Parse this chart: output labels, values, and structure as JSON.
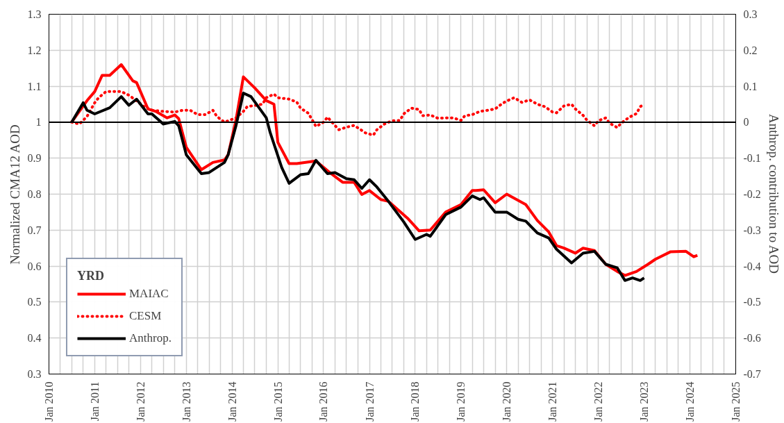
{
  "chart_data": {
    "type": "line",
    "xlim": [
      "2010-01",
      "2025-01"
    ],
    "xticks": [
      {
        "value": "2010-01",
        "label": "Jan 2010"
      },
      {
        "value": "2010-04",
        "label": null
      },
      {
        "value": "2010-07",
        "label": null
      },
      {
        "value": "2010-10",
        "label": null
      },
      {
        "value": "2011-01",
        "label": "Jan 2011"
      },
      {
        "value": "2011-04",
        "label": null
      },
      {
        "value": "2011-07",
        "label": null
      },
      {
        "value": "2011-10",
        "label": null
      },
      {
        "value": "2012-01",
        "label": "Jan 2012"
      },
      {
        "value": "2012-04",
        "label": null
      },
      {
        "value": "2012-07",
        "label": null
      },
      {
        "value": "2012-10",
        "label": null
      },
      {
        "value": "2013-01",
        "label": "Jan 2013"
      },
      {
        "value": "2013-04",
        "label": null
      },
      {
        "value": "2013-07",
        "label": null
      },
      {
        "value": "2013-10",
        "label": null
      },
      {
        "value": "2014-01",
        "label": "Jan 2014"
      },
      {
        "value": "2014-04",
        "label": null
      },
      {
        "value": "2014-07",
        "label": null
      },
      {
        "value": "2014-10",
        "label": null
      },
      {
        "value": "2015-01",
        "label": "Jan 2015"
      },
      {
        "value": "2015-04",
        "label": null
      },
      {
        "value": "2015-07",
        "label": null
      },
      {
        "value": "2015-10",
        "label": null
      },
      {
        "value": "2016-01",
        "label": "Jan 2016"
      },
      {
        "value": "2016-04",
        "label": null
      },
      {
        "value": "2016-07",
        "label": null
      },
      {
        "value": "2016-10",
        "label": null
      },
      {
        "value": "2017-01",
        "label": "Jan 2017"
      },
      {
        "value": "2017-04",
        "label": null
      },
      {
        "value": "2017-07",
        "label": null
      },
      {
        "value": "2017-10",
        "label": null
      },
      {
        "value": "2018-01",
        "label": "Jan 2018"
      },
      {
        "value": "2018-04",
        "label": null
      },
      {
        "value": "2018-07",
        "label": null
      },
      {
        "value": "2018-10",
        "label": null
      },
      {
        "value": "2019-01",
        "label": "Jan 2019"
      },
      {
        "value": "2019-04",
        "label": null
      },
      {
        "value": "2019-07",
        "label": null
      },
      {
        "value": "2019-10",
        "label": null
      },
      {
        "value": "2020-01",
        "label": "Jan 2020"
      },
      {
        "value": "2020-04",
        "label": null
      },
      {
        "value": "2020-07",
        "label": null
      },
      {
        "value": "2020-10",
        "label": null
      },
      {
        "value": "2021-01",
        "label": "Jan 2021"
      },
      {
        "value": "2021-04",
        "label": null
      },
      {
        "value": "2021-07",
        "label": null
      },
      {
        "value": "2021-10",
        "label": null
      },
      {
        "value": "2022-01",
        "label": "Jan 2022"
      },
      {
        "value": "2022-04",
        "label": null
      },
      {
        "value": "2022-07",
        "label": null
      },
      {
        "value": "2022-10",
        "label": null
      },
      {
        "value": "2023-01",
        "label": "Jan 2023"
      },
      {
        "value": "2023-04",
        "label": null
      },
      {
        "value": "2023-07",
        "label": null
      },
      {
        "value": "2023-10",
        "label": null
      },
      {
        "value": "2024-01",
        "label": "Jan 2024"
      },
      {
        "value": "2024-04",
        "label": null
      },
      {
        "value": "2024-07",
        "label": null
      },
      {
        "value": "2024-10",
        "label": null
      },
      {
        "value": "2025-01",
        "label": "Jan 2025"
      }
    ],
    "ylim": [
      0.3,
      1.3
    ],
    "yticks": [
      0.3,
      0.4,
      0.5,
      0.6,
      0.7,
      0.8,
      0.9,
      1,
      1.1,
      1.2,
      1.3
    ],
    "y2lim": [
      -0.7,
      0.3
    ],
    "y2ticks": [
      -0.7,
      -0.6,
      -0.5,
      -0.4,
      -0.3,
      -0.2,
      -0.1,
      0,
      0.1,
      0.2,
      0.3
    ],
    "ylabel": "Normalized CMA12 AOD",
    "y2label": "Anthrop. contribution to AOD",
    "legend_title": "YRD",
    "legend": "bottom left",
    "grid": true,
    "line_style": "solid",
    "ref_lines": [
      {
        "axis": "y",
        "value": 1,
        "label": null,
        "color": "#000000"
      }
    ],
    "series": [
      {
        "name": "MAIAC",
        "color": "#ff0000",
        "x": [
          "2010-07",
          "2010-11",
          "2011-01",
          "2011-03",
          "2011-05",
          "2011-08",
          "2011-11",
          "2011-12",
          "2012-03",
          "2012-05",
          "2012-08",
          "2012-10",
          "2012-11",
          "2013-01",
          "2013-05",
          "2013-08",
          "2013-11",
          "2013-12",
          "2014-02",
          "2014-04",
          "2014-07",
          "2014-10",
          "2014-12",
          "2015-01",
          "2015-04",
          "2015-06",
          "2015-11",
          "2016-03",
          "2016-06",
          "2016-09",
          "2016-11",
          "2017-01",
          "2017-04",
          "2017-06",
          "2017-11",
          "2018-02",
          "2018-05",
          "2018-09",
          "2019-01",
          "2019-04",
          "2019-05",
          "2019-07",
          "2019-10",
          "2020-01",
          "2020-06",
          "2020-09",
          "2020-12",
          "2021-02",
          "2021-04",
          "2021-07",
          "2021-09",
          "2021-12",
          "2022-03",
          "2022-06",
          "2022-08",
          "2022-11",
          "2023-02",
          "2023-04",
          "2023-08",
          "2023-12",
          "2024-02",
          "2024-03"
        ],
        "values": [
          1.0,
          1.06,
          1.085,
          1.13,
          1.13,
          1.16,
          1.115,
          1.11,
          1.037,
          1.03,
          1.012,
          1.02,
          1.01,
          0.93,
          0.868,
          0.888,
          0.895,
          0.91,
          1.006,
          1.126,
          1.095,
          1.06,
          1.05,
          0.944,
          0.885,
          0.885,
          0.892,
          0.857,
          0.833,
          0.833,
          0.799,
          0.81,
          0.785,
          0.78,
          0.733,
          0.698,
          0.7,
          0.75,
          0.771,
          0.81,
          0.81,
          0.812,
          0.776,
          0.8,
          0.771,
          0.727,
          0.695,
          0.657,
          0.65,
          0.636,
          0.65,
          0.643,
          0.605,
          0.585,
          0.574,
          0.585,
          0.605,
          0.619,
          0.64,
          0.641,
          0.626,
          0.63
        ]
      },
      {
        "name": "CESM",
        "color": "#ff0000",
        "line_style": "dotted",
        "x": [
          "2010-07",
          "2010-09",
          "2010-11",
          "2011-01",
          "2011-02",
          "2011-04",
          "2011-08",
          "2011-10",
          "2012-02",
          "2012-04",
          "2012-07",
          "2012-10",
          "2012-12",
          "2013-02",
          "2013-04",
          "2013-06",
          "2013-08",
          "2013-09",
          "2013-11",
          "2014-02",
          "2014-04",
          "2014-05",
          "2014-09",
          "2014-10",
          "2014-12",
          "2015-01",
          "2015-04",
          "2015-06",
          "2015-07",
          "2015-09",
          "2015-10",
          "2015-11",
          "2016-01",
          "2016-02",
          "2016-05",
          "2016-07",
          "2016-09",
          "2016-11",
          "2016-12",
          "2017-02",
          "2017-03",
          "2017-05",
          "2017-07",
          "2017-09",
          "2017-10",
          "2017-12",
          "2018-02",
          "2018-03",
          "2018-05",
          "2018-07",
          "2018-09",
          "2018-11",
          "2019-01",
          "2019-02",
          "2019-04",
          "2019-06",
          "2019-08",
          "2019-10",
          "2019-12",
          "2020-02",
          "2020-03",
          "2020-05",
          "2020-07",
          "2020-09",
          "2020-11",
          "2021-01",
          "2021-02",
          "2021-04",
          "2021-06",
          "2021-07",
          "2021-09",
          "2021-10",
          "2021-12",
          "2022-01",
          "2022-03",
          "2022-04",
          "2022-06",
          "2022-07",
          "2022-09",
          "2022-11",
          "2022-12",
          "2023-01"
        ],
        "values": [
          1.0,
          0.995,
          1.016,
          1.054,
          1.068,
          1.085,
          1.085,
          1.075,
          1.043,
          1.033,
          1.03,
          1.028,
          1.033,
          1.033,
          1.021,
          1.021,
          1.033,
          1.016,
          1.0,
          1.012,
          1.03,
          1.043,
          1.05,
          1.068,
          1.078,
          1.068,
          1.064,
          1.056,
          1.039,
          1.025,
          1.007,
          0.988,
          1.0,
          1.014,
          0.979,
          0.986,
          0.991,
          0.977,
          0.97,
          0.964,
          0.979,
          0.995,
          1.004,
          1.005,
          1.023,
          1.039,
          1.035,
          1.018,
          1.02,
          1.011,
          1.012,
          1.012,
          1.005,
          1.018,
          1.021,
          1.03,
          1.033,
          1.037,
          1.053,
          1.064,
          1.068,
          1.055,
          1.062,
          1.05,
          1.043,
          1.028,
          1.026,
          1.045,
          1.05,
          1.037,
          1.019,
          1.006,
          0.99,
          1.004,
          1.012,
          0.997,
          0.985,
          0.997,
          1.013,
          1.024,
          1.043,
          1.05
        ]
      },
      {
        "name": "Anthrop.",
        "color": "#000000",
        "axis": "y2",
        "x": [
          "2010-07",
          "2010-10",
          "2010-11",
          "2011-01",
          "2011-05",
          "2011-08",
          "2011-10",
          "2011-12",
          "2012-03",
          "2012-04",
          "2012-07",
          "2012-10",
          "2012-11",
          "2013-01",
          "2013-05",
          "2013-07",
          "2013-11",
          "2013-12",
          "2014-02",
          "2014-04",
          "2014-06",
          "2014-10",
          "2014-11",
          "2015-02",
          "2015-04",
          "2015-07",
          "2015-09",
          "2015-11",
          "2016-02",
          "2016-04",
          "2016-07",
          "2016-09",
          "2016-11",
          "2017-01",
          "2017-03",
          "2017-06",
          "2017-10",
          "2018-01",
          "2018-04",
          "2018-05",
          "2018-09",
          "2019-01",
          "2019-04",
          "2019-06",
          "2019-07",
          "2019-10",
          "2020-01",
          "2020-04",
          "2020-06",
          "2020-09",
          "2020-12",
          "2021-02",
          "2021-06",
          "2021-09",
          "2021-12",
          "2022-03",
          "2022-06",
          "2022-08",
          "2022-10",
          "2022-12",
          "2023-01"
        ],
        "values": [
          0.0,
          0.054,
          0.033,
          0.023,
          0.04,
          0.071,
          0.047,
          0.064,
          0.023,
          0.023,
          -0.005,
          0.002,
          -0.01,
          -0.091,
          -0.143,
          -0.14,
          -0.112,
          -0.09,
          -0.01,
          0.081,
          0.071,
          0.012,
          -0.029,
          -0.126,
          -0.17,
          -0.146,
          -0.143,
          -0.106,
          -0.143,
          -0.14,
          -0.157,
          -0.16,
          -0.184,
          -0.16,
          -0.18,
          -0.22,
          -0.277,
          -0.326,
          -0.312,
          -0.317,
          -0.257,
          -0.236,
          -0.205,
          -0.215,
          -0.21,
          -0.25,
          -0.25,
          -0.27,
          -0.275,
          -0.308,
          -0.322,
          -0.353,
          -0.391,
          -0.364,
          -0.359,
          -0.395,
          -0.405,
          -0.44,
          -0.433,
          -0.44,
          -0.433
        ]
      }
    ]
  }
}
